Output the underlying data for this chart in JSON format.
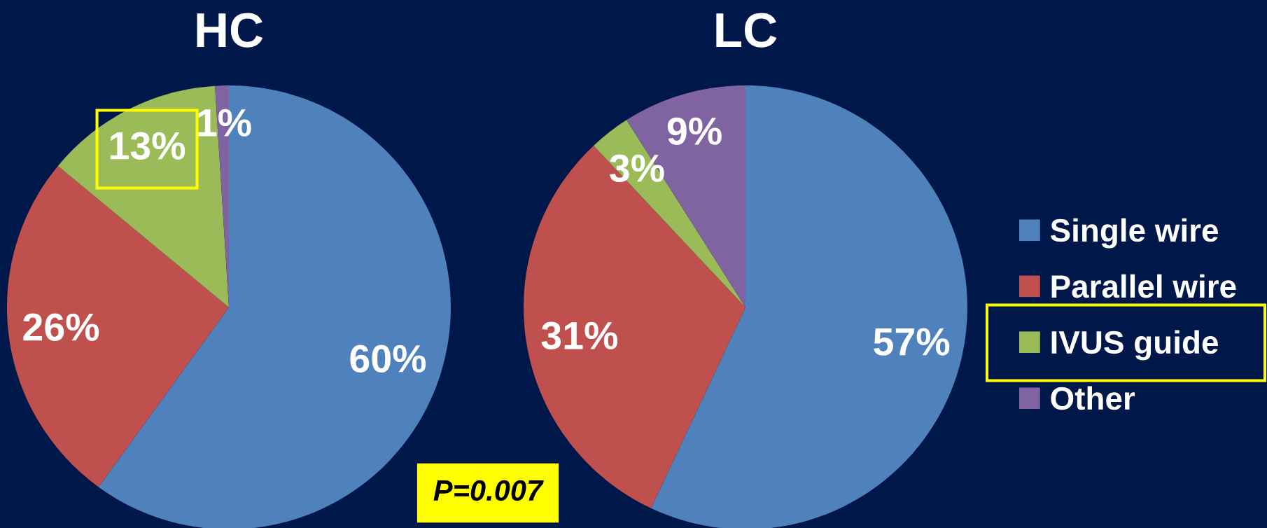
{
  "chart_data": [
    {
      "type": "pie",
      "title": "HC",
      "categories": [
        "Single wire",
        "Parallel wire",
        "IVUS guide",
        "Other"
      ],
      "values": [
        60,
        26,
        13,
        1
      ],
      "colors": [
        "#4f81bd",
        "#c0504d",
        "#9bbb59",
        "#8064a2"
      ],
      "value_labels": [
        "60%",
        "26%",
        "13%",
        "1%"
      ],
      "annotations": [
        "P=0.007"
      ],
      "legend": "right"
    },
    {
      "type": "pie",
      "title": "LC",
      "categories": [
        null,
        null,
        null,
        null
      ],
      "values": [
        57,
        31,
        3,
        9
      ],
      "colors": [
        "#4f81bd",
        "#c0504d",
        "#9bbb59",
        "#8064a2"
      ],
      "value_labels": [
        "57%",
        "31%",
        "3%",
        "9%"
      ]
    }
  ]
}
